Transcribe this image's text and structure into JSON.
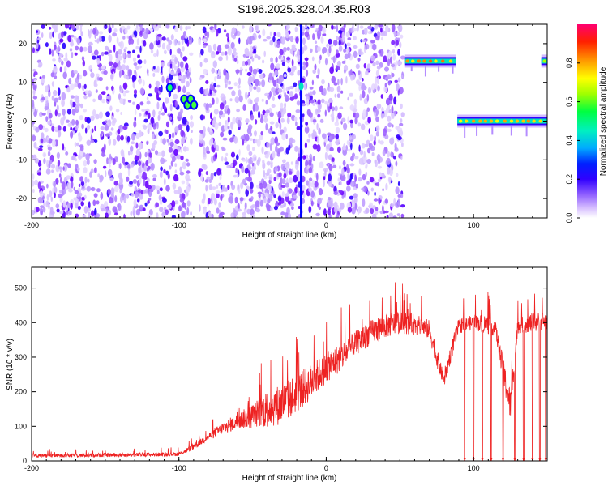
{
  "title": "S196.2025.328.04.35.R03",
  "chart_data": [
    {
      "type": "heatmap",
      "xlabel": "Height of straight line (km)",
      "ylabel": "Frequency (Hz)",
      "xlim": [
        -200,
        150
      ],
      "ylim": [
        -25,
        25
      ],
      "xticks": [
        -200,
        -100,
        0,
        100
      ],
      "yticks": [
        -20,
        -10,
        0,
        10,
        20
      ],
      "colorbar": {
        "label": "Normalized spectral amplitude",
        "range": [
          0.0,
          1.0
        ],
        "ticks": [
          0.0,
          0.2,
          0.4,
          0.6,
          0.8
        ],
        "tick_labels": [
          "0.0",
          "0.2",
          "0.4",
          "0.6",
          "0.8"
        ],
        "colormap": [
          "#ffffff",
          "#b48cff",
          "#6a00ff",
          "#0000ff",
          "#00c8ff",
          "#00ff80",
          "#7fff00",
          "#ffff00",
          "#ff8000",
          "#ff0000",
          "#ff0066"
        ]
      },
      "features": [
        {
          "name": "broadband noise",
          "x_range": [
            -200,
            52
          ],
          "freq_range": [
            -25,
            25
          ],
          "amplitude": 0.15
        },
        {
          "name": "gap",
          "x_range": [
            -91,
            -86
          ],
          "freq_range": [
            -25,
            25
          ],
          "amplitude": 0.0
        },
        {
          "name": "spike",
          "x": -105,
          "freq": 8,
          "amplitude": 0.5
        },
        {
          "name": "spike cluster",
          "x": -92,
          "freq": 5,
          "amplitude": 0.55
        },
        {
          "name": "vertical line",
          "x": -17,
          "freq_range": [
            -25,
            25
          ],
          "amplitude": 0.3
        },
        {
          "name": "tone band",
          "x_range": [
            53,
            88
          ],
          "freq": 15.5,
          "amplitude": 0.85
        },
        {
          "name": "tone band",
          "x_range": [
            89,
            150
          ],
          "freq": 0,
          "amplitude": 0.8
        },
        {
          "name": "tone band",
          "x_range": [
            146,
            150
          ],
          "freq": 15.5,
          "amplitude": 0.7
        }
      ]
    },
    {
      "type": "line",
      "xlabel": "Height of straight line (km)",
      "ylabel": "SNR (10 * v/v)",
      "xlim": [
        -200,
        150
      ],
      "ylim": [
        0,
        560
      ],
      "xticks": [
        -200,
        -100,
        0,
        100
      ],
      "yticks": [
        0,
        100,
        200,
        300,
        400,
        500
      ],
      "color": "#ee2222",
      "series": [
        {
          "name": "SNR trend",
          "x": [
            -200,
            -120,
            -100,
            -90,
            -80,
            -70,
            -60,
            -50,
            -40,
            -30,
            -20,
            -10,
            0,
            10,
            20,
            30,
            40,
            50,
            60,
            70,
            75,
            80,
            85,
            90,
            100,
            110,
            115,
            120,
            125,
            130,
            140,
            150
          ],
          "y": [
            15,
            18,
            20,
            40,
            70,
            95,
            115,
            130,
            150,
            165,
            195,
            230,
            270,
            300,
            340,
            370,
            390,
            400,
            395,
            380,
            300,
            230,
            320,
            390,
            400,
            395,
            380,
            260,
            160,
            390,
            400,
            405
          ]
        },
        {
          "name": "SNR upper envelope",
          "x": [
            -200,
            -100,
            -90,
            -80,
            -70,
            -60,
            -50,
            -40,
            -30,
            -20,
            -10,
            0,
            10,
            20,
            30,
            40,
            50,
            60,
            70,
            75,
            80,
            85,
            90,
            100,
            110,
            120,
            125,
            130,
            140,
            150
          ],
          "y": [
            35,
            40,
            70,
            110,
            160,
            200,
            260,
            350,
            380,
            400,
            420,
            430,
            450,
            470,
            500,
            520,
            515,
            505,
            480,
            400,
            300,
            420,
            470,
            480,
            500,
            410,
            330,
            470,
            500,
            505
          ]
        }
      ],
      "dropouts_x": [
        94,
        100,
        106,
        112,
        120,
        128,
        134,
        140,
        145,
        149
      ]
    }
  ]
}
